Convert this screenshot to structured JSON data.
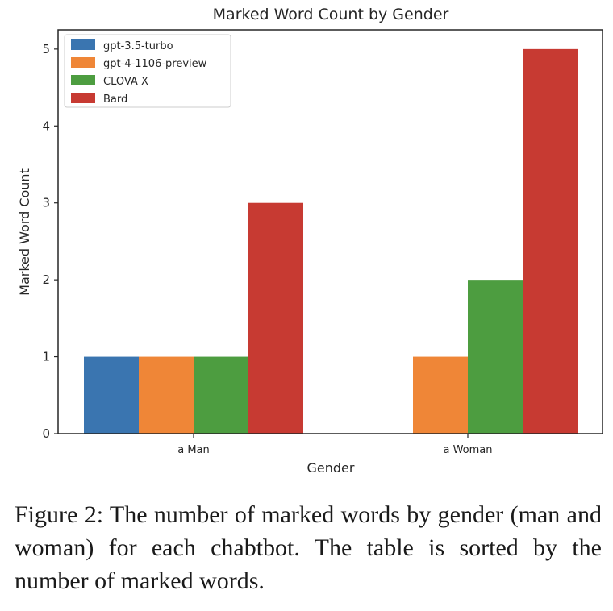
{
  "chart_data": {
    "type": "bar",
    "title": "Marked Word Count by Gender",
    "xlabel": "Gender",
    "ylabel": "Marked Word Count",
    "categories": [
      "a Man",
      "a Woman"
    ],
    "series": [
      {
        "name": "gpt-3.5-turbo",
        "values": [
          1,
          0
        ],
        "color": "#3a75b0"
      },
      {
        "name": "gpt-4-1106-preview",
        "values": [
          1,
          1
        ],
        "color": "#ef8637"
      },
      {
        "name": "CLOVA X",
        "values": [
          1,
          2
        ],
        "color": "#4d9d40"
      },
      {
        "name": "Bard",
        "values": [
          3,
          5
        ],
        "color": "#c73a32"
      }
    ],
    "ylim": [
      0,
      5.25
    ],
    "yticks": [
      0,
      1,
      2,
      3,
      4,
      5
    ],
    "grid": false,
    "legend_position": "top-left"
  },
  "caption": "Figure 2: The number of marked words by gender (man and woman) for each chabtbot. The table is sorted by the number of marked words."
}
